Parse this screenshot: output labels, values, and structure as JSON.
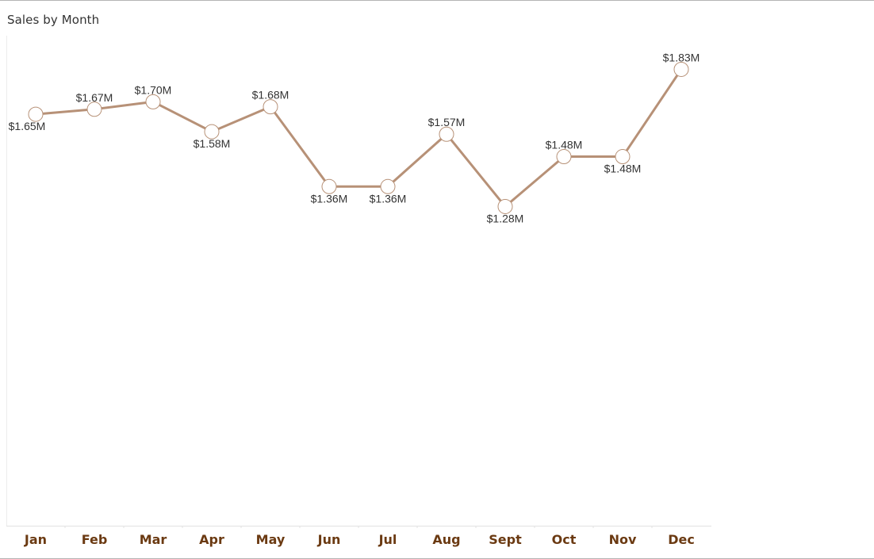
{
  "chart_data": {
    "type": "line",
    "title": "Sales by Month",
    "xlabel": "",
    "ylabel": "",
    "categories": [
      "Jan",
      "Feb",
      "Mar",
      "Apr",
      "May",
      "Jun",
      "Jul",
      "Aug",
      "Sept",
      "Oct",
      "Nov",
      "Dec"
    ],
    "series": [
      {
        "values": [
          1.65,
          1.67,
          1.7,
          1.58,
          1.68,
          1.36,
          1.36,
          1.57,
          1.28,
          1.48,
          1.48,
          1.83
        ],
        "labels": [
          "$1.65M",
          "$1.67M",
          "$1.70M",
          "$1.58M",
          "$1.68M",
          "$1.36M",
          "$1.36M",
          "$1.57M",
          "$1.28M",
          "$1.48M",
          "$1.48M",
          "$1.83M"
        ],
        "color": "#b79177"
      }
    ],
    "ylim": [
      0,
      1.88
    ],
    "grid": false,
    "legend": "none",
    "marker": "circle",
    "marker_fill": "#ffffff"
  }
}
